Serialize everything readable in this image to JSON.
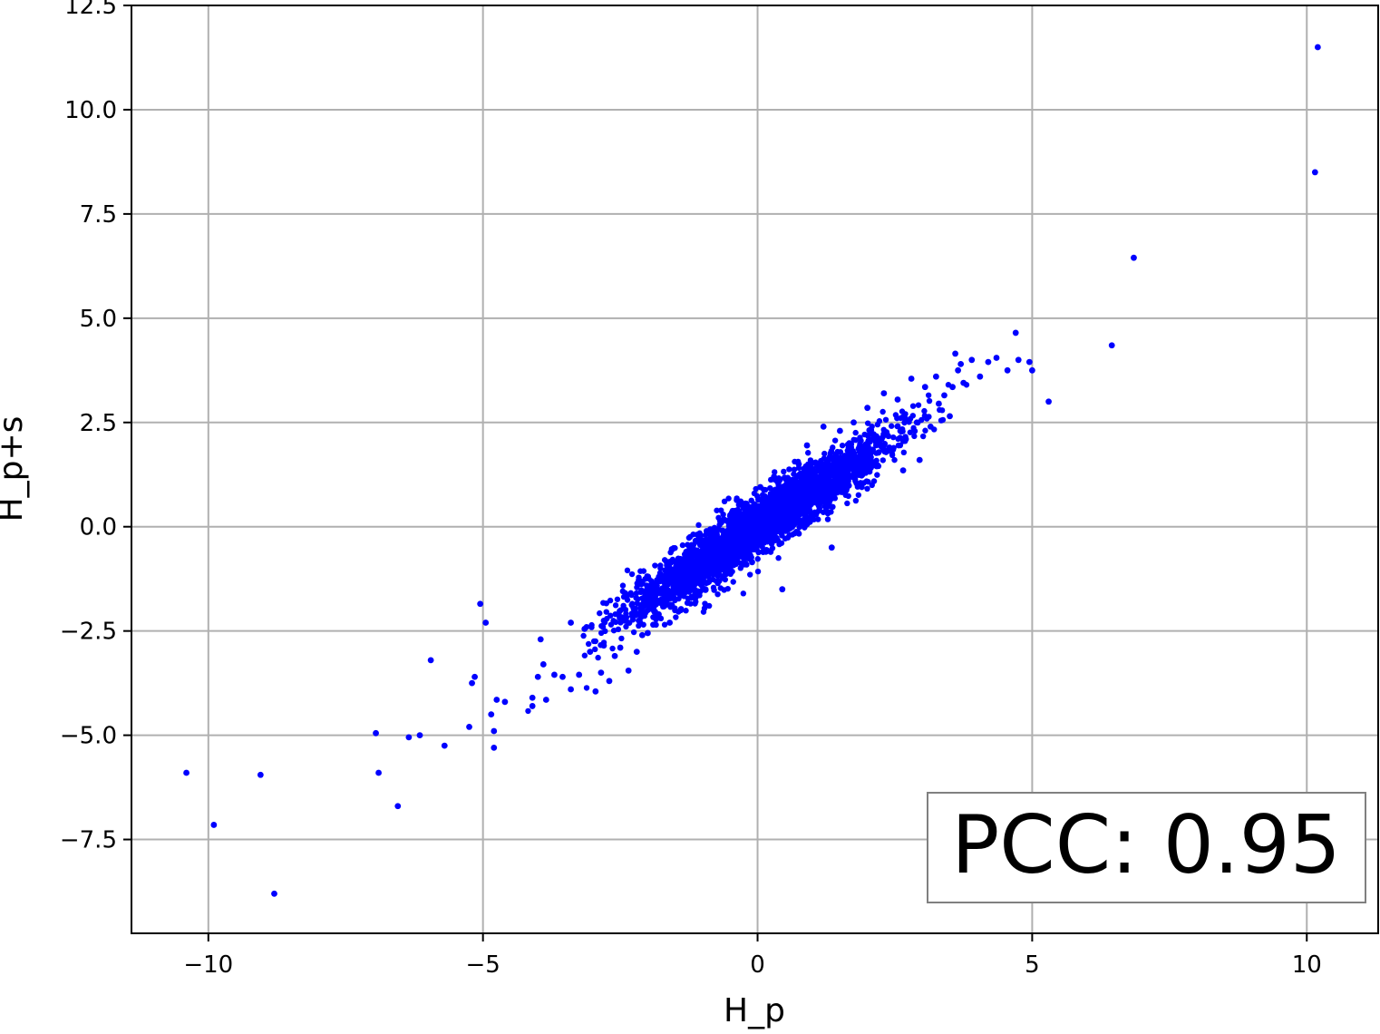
{
  "chart_data": {
    "type": "scatter",
    "title": "",
    "xlabel": "H_p",
    "ylabel": "H_p+s",
    "xlim": [
      -11.4,
      11.3
    ],
    "ylim": [
      -9.75,
      12.5
    ],
    "x_ticks": [
      -10,
      -5,
      0,
      5,
      10
    ],
    "x_tick_labels": [
      "−10",
      "−5",
      "0",
      "5",
      "10"
    ],
    "y_ticks": [
      -7.5,
      -5.0,
      -2.5,
      0.0,
      2.5,
      5.0,
      7.5,
      10.0,
      12.5
    ],
    "y_tick_labels": [
      "−7.5",
      "−5.0",
      "−2.5",
      "0.0",
      "2.5",
      "5.0",
      "7.5",
      "10.0",
      "12.5"
    ],
    "grid": true,
    "marker_color": "#0000ff",
    "annotation": {
      "text": "PCC: 0.95",
      "placement": "bottom-right"
    },
    "series": [
      {
        "points": [
          [
            -10.4,
            -5.9
          ],
          [
            -9.9,
            -7.15
          ],
          [
            -9.05,
            -5.95
          ],
          [
            -8.8,
            -8.8
          ],
          [
            -6.95,
            -4.95
          ],
          [
            -6.9,
            -5.9
          ],
          [
            -6.55,
            -6.7
          ],
          [
            -6.35,
            -5.05
          ],
          [
            -6.15,
            -5.0
          ],
          [
            -5.95,
            -3.2
          ],
          [
            -5.7,
            -5.25
          ],
          [
            -5.25,
            -4.8
          ],
          [
            -5.2,
            -3.75
          ],
          [
            -5.15,
            -3.6
          ],
          [
            -5.05,
            -1.85
          ],
          [
            -4.95,
            -2.3
          ],
          [
            -4.85,
            -4.5
          ],
          [
            -4.8,
            -4.9
          ],
          [
            -4.8,
            -5.3
          ],
          [
            -4.75,
            -4.15
          ],
          [
            -4.6,
            -4.2
          ],
          [
            -4.1,
            -4.1
          ],
          [
            -4.1,
            -4.3
          ],
          [
            -4.0,
            -3.6
          ],
          [
            -3.95,
            -2.7
          ],
          [
            -3.9,
            -3.3
          ],
          [
            -3.85,
            -4.15
          ],
          [
            -3.7,
            -3.55
          ],
          [
            -3.55,
            -3.6
          ],
          [
            -3.4,
            -3.9
          ],
          [
            -3.4,
            -2.3
          ],
          [
            -3.25,
            -3.55
          ],
          [
            -3.15,
            -2.45
          ],
          [
            -3.05,
            -3.0
          ],
          [
            -2.95,
            -3.95
          ],
          [
            -2.85,
            -3.5
          ],
          [
            -2.8,
            -2.85
          ],
          [
            -2.7,
            -3.7
          ],
          [
            -2.6,
            -3.1
          ],
          [
            -2.5,
            -2.9
          ],
          [
            -2.35,
            -3.45
          ],
          [
            -2.2,
            -3.0
          ],
          [
            -2.1,
            -2.6
          ],
          [
            -2.0,
            -2.55
          ],
          [
            -1.9,
            -2.35
          ],
          [
            -1.8,
            -2.1
          ],
          [
            -1.75,
            -1.75
          ],
          [
            -1.6,
            -2.3
          ],
          [
            -1.5,
            -1.5
          ],
          [
            -1.4,
            -2.0
          ],
          [
            -1.3,
            -1.1
          ],
          [
            -1.2,
            -1.7
          ],
          [
            -1.1,
            -0.75
          ],
          [
            -0.95,
            -1.5
          ],
          [
            -0.85,
            -0.4
          ],
          [
            -0.7,
            -1.3
          ],
          [
            -0.55,
            -0.1
          ],
          [
            -0.45,
            -0.9
          ],
          [
            -0.35,
            0.35
          ],
          [
            -0.2,
            0.55
          ],
          [
            -0.1,
            -0.85
          ],
          [
            0.05,
            0.95
          ],
          [
            0.15,
            -0.6
          ],
          [
            0.3,
            1.2
          ],
          [
            0.45,
            -1.5
          ],
          [
            0.6,
            0.5
          ],
          [
            0.75,
            1.5
          ],
          [
            0.9,
            1.95
          ],
          [
            1.05,
            1.2
          ],
          [
            1.2,
            2.4
          ],
          [
            1.35,
            -0.5
          ],
          [
            1.5,
            2.3
          ],
          [
            1.65,
            1.1
          ],
          [
            1.75,
            2.5
          ],
          [
            1.9,
            1.75
          ],
          [
            2.0,
            2.85
          ],
          [
            2.15,
            1.5
          ],
          [
            2.3,
            3.2
          ],
          [
            2.4,
            1.9
          ],
          [
            2.55,
            3.05
          ],
          [
            2.65,
            1.35
          ],
          [
            2.7,
            2.1
          ],
          [
            2.8,
            3.55
          ],
          [
            2.9,
            2.5
          ],
          [
            2.95,
            1.6
          ],
          [
            3.05,
            3.35
          ],
          [
            3.15,
            2.4
          ],
          [
            3.25,
            3.6
          ],
          [
            3.3,
            2.95
          ],
          [
            3.4,
            3.15
          ],
          [
            3.5,
            2.65
          ],
          [
            3.55,
            3.35
          ],
          [
            3.6,
            4.15
          ],
          [
            3.65,
            3.75
          ],
          [
            3.7,
            3.9
          ],
          [
            3.75,
            3.45
          ],
          [
            3.9,
            4.0
          ],
          [
            4.05,
            3.6
          ],
          [
            4.2,
            3.95
          ],
          [
            4.35,
            4.05
          ],
          [
            4.55,
            3.75
          ],
          [
            4.7,
            4.65
          ],
          [
            4.75,
            4.0
          ],
          [
            4.95,
            3.95
          ],
          [
            5.0,
            3.75
          ],
          [
            5.3,
            3.0
          ],
          [
            6.45,
            4.35
          ],
          [
            6.85,
            6.45
          ],
          [
            10.15,
            8.5
          ],
          [
            10.2,
            11.5
          ]
        ]
      }
    ]
  }
}
